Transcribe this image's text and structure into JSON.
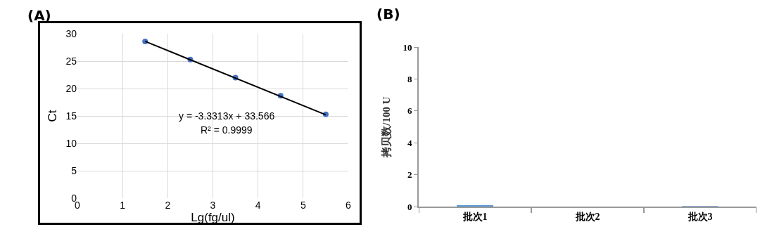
{
  "chart_data": [
    {
      "type": "scatter",
      "title": "(A)",
      "xlabel": "Lg(fg/ul)",
      "ylabel": "Ct",
      "xlim": [
        0,
        6
      ],
      "xticks": [
        0,
        1,
        2,
        3,
        4,
        5,
        6
      ],
      "ylim": [
        0,
        30
      ],
      "yticks": [
        0,
        5,
        10,
        15,
        20,
        25,
        30
      ],
      "grid": true,
      "marker": "circle",
      "legend": false,
      "series": [
        {
          "type": "scatter",
          "color": "#4472c4",
          "x": [
            1.5,
            2.5,
            3.5,
            4.5,
            5.5
          ],
          "values": [
            28.6,
            25.3,
            22,
            18.7,
            15.3
          ]
        },
        {
          "type": "line",
          "color": "#000000",
          "marker": "none",
          "x": [
            1.5,
            5.5
          ],
          "values": [
            28.6,
            15.2
          ]
        }
      ],
      "annotations": [
        "y = -3.3313x + 33.566",
        "R² = 0.9999"
      ]
    },
    {
      "type": "bar",
      "title": "(B)",
      "ylabel": "拷贝数/100 U",
      "categories": [
        "批次1",
        "批次2",
        "批次3"
      ],
      "values": [
        0.05,
        0,
        0.02
      ],
      "colors": [
        "#5b9bd5",
        "#5b9bd5",
        "#8faadc"
      ],
      "ylim": [
        0,
        10
      ],
      "yticks": [
        0,
        2,
        4,
        6,
        8,
        10
      ],
      "grid": false,
      "legend": false
    }
  ]
}
